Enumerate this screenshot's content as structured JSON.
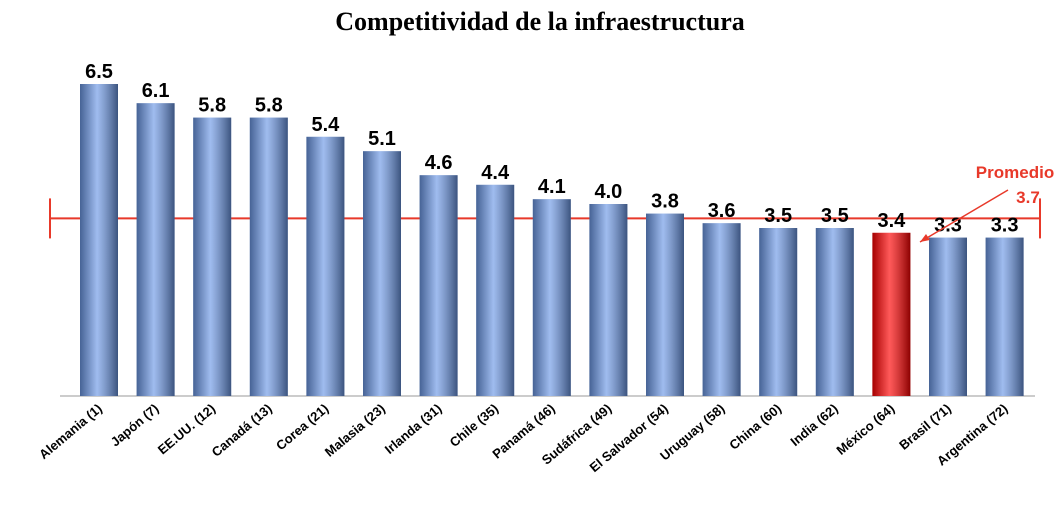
{
  "chart_data": {
    "type": "bar",
    "title": "Competitividad de la infraestructura",
    "categories": [
      "Alemania (1)",
      "Japón (7)",
      "EE.UU. (12)",
      "Canadá (13)",
      "Corea (21)",
      "Malasia (23)",
      "Irlanda (31)",
      "Chile (35)",
      "Panamá (46)",
      "Sudáfrica (49)",
      "El Salvador (54)",
      "Uruguay (58)",
      "China (60)",
      "India (62)",
      "México (64)",
      "Brasil (71)",
      "Argentina (72)"
    ],
    "values": [
      6.5,
      6.1,
      5.8,
      5.8,
      5.4,
      5.1,
      4.6,
      4.4,
      4.1,
      4.0,
      3.8,
      3.6,
      3.5,
      3.5,
      3.4,
      3.3,
      3.3
    ],
    "value_labels": [
      "6.5",
      "6.1",
      "5.8",
      "5.8",
      "5.4",
      "5.1",
      "4.6",
      "4.4",
      "4.1",
      "4.0",
      "3.8",
      "3.6",
      "3.5",
      "3.5",
      "3.4",
      "3.3",
      "3.3"
    ],
    "colors": [
      "#6c98e6",
      "#6c98e6",
      "#6c98e6",
      "#6c98e6",
      "#6c98e6",
      "#6c98e6",
      "#6c98e6",
      "#6c98e6",
      "#6c98e6",
      "#6c98e6",
      "#6c98e6",
      "#6c98e6",
      "#6c98e6",
      "#6c98e6",
      "#ff0000",
      "#6c98e6",
      "#6c98e6"
    ],
    "average": {
      "label": "Promedio",
      "value": 3.7,
      "color": "#e8392a"
    }
  }
}
